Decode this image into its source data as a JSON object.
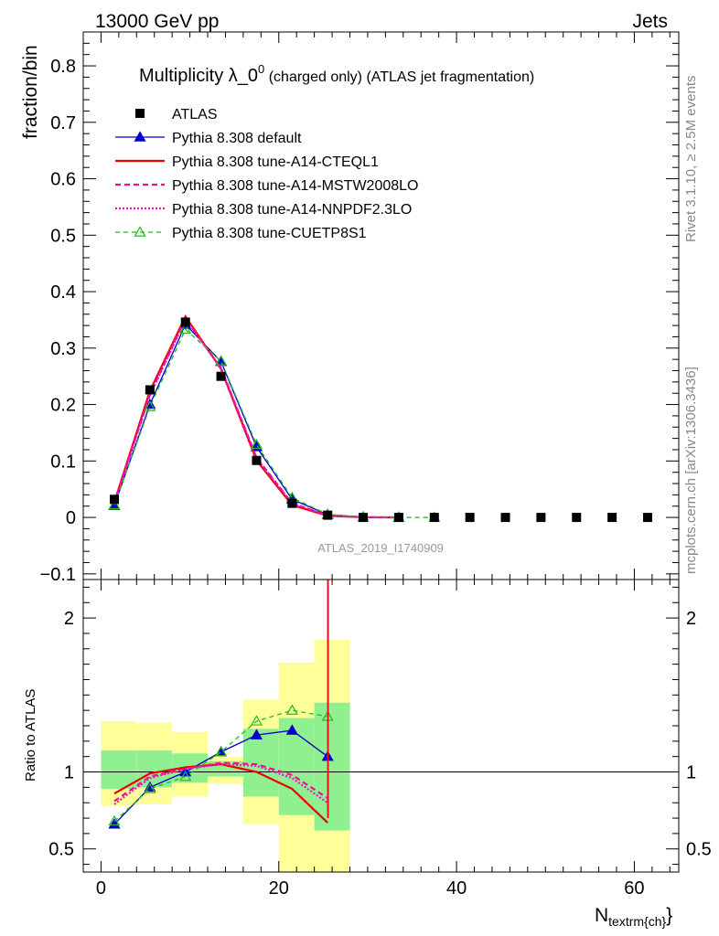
{
  "header": {
    "left": "13000 GeV pp",
    "right": "Jets"
  },
  "side": {
    "rivet": "Rivet 3.1.10, ≥ 2.5M events",
    "mcplots": "mcplots.cern.ch [arXiv:1306.3436]"
  },
  "main": {
    "title_prefix": "Multiplicity λ_0",
    "title_sup": "0",
    "title_suffix": " (charged only) (ATLAS jet fragmentation)",
    "ylabel": "fraction/bin",
    "analysis": "ATLAS_2019_I1740909"
  },
  "ratio": {
    "ylabel": "Ratio to ATLAS"
  },
  "xaxis": {
    "label_main": "N",
    "label_sub": "textrm{ch}",
    "label_close": "}"
  },
  "colors": {
    "data": "#000000",
    "default": "#0000cc",
    "cteql1": "#ee0000",
    "mstw": "#ee1188",
    "nnpdf": "#ee11cc",
    "cuetp8s1": "#22bb22",
    "band_inner": "#90f090",
    "band_outer": "#ffff99"
  },
  "chart_data": {
    "type": "line",
    "x_range": [
      -2,
      65
    ],
    "main_ylim": [
      -0.11,
      0.86
    ],
    "ratio_ylim": [
      0.35,
      2.25
    ],
    "x_ticks": [
      0,
      20,
      40,
      60
    ],
    "main_y_ticks": [
      -0.1,
      0,
      0.1,
      0.2,
      0.3,
      0.4,
      0.5,
      0.6,
      0.7,
      0.8
    ],
    "ratio_y_ticks": [
      0.5,
      1,
      2
    ],
    "legend_position": "top-left",
    "data": {
      "name": "ATLAS",
      "x": [
        1.5,
        5.5,
        9.5,
        13.5,
        17.5,
        21.5,
        25.5,
        29.5,
        33.5,
        37.5,
        41.5,
        45.5,
        49.5,
        53.5,
        57.5,
        61.5
      ],
      "y": [
        0.032,
        0.226,
        0.346,
        0.25,
        0.101,
        0.025,
        0.004,
        0.0,
        0.0,
        0.0,
        0.0,
        0.0,
        0.0,
        0.0,
        0.0,
        0.0
      ]
    },
    "series": [
      {
        "name": "Pythia 8.308 default",
        "key": "default",
        "x": [
          1.5,
          5.5,
          9.5,
          13.5,
          17.5,
          21.5,
          25.5,
          29.5,
          33.5
        ],
        "y": [
          0.021,
          0.2,
          0.342,
          0.276,
          0.125,
          0.032,
          0.005,
          0.0006,
          5e-05
        ],
        "ratio": [
          0.66,
          0.9,
          1.0,
          1.13,
          1.24,
          1.27,
          1.1
        ]
      },
      {
        "name": "Pythia 8.308 tune-A14-CTEQL1",
        "key": "cteql1",
        "x": [
          1.5,
          5.5,
          9.5,
          13.5,
          17.5,
          21.5,
          25.5,
          29.5,
          33.5
        ],
        "y": [
          0.027,
          0.224,
          0.356,
          0.263,
          0.101,
          0.022,
          0.003,
          0.0003,
          2e-05
        ],
        "ratio": [
          0.86,
          0.99,
          1.03,
          1.05,
          1.0,
          0.89,
          0.67
        ]
      },
      {
        "name": "Pythia 8.308 tune-A14-MSTW2008LO",
        "key": "mstw",
        "x": [
          1.5,
          5.5,
          9.5,
          13.5,
          17.5,
          21.5,
          25.5,
          29.5,
          33.5
        ],
        "y": [
          0.026,
          0.218,
          0.352,
          0.264,
          0.106,
          0.025,
          0.0035,
          0.0004,
          3e-05
        ],
        "ratio": [
          0.81,
          0.97,
          1.02,
          1.06,
          1.05,
          0.98,
          0.83
        ]
      },
      {
        "name": "Pythia 8.308 tune-A14-NNPDF2.3LO",
        "key": "nnpdf",
        "x": [
          1.5,
          5.5,
          9.5,
          13.5,
          17.5,
          21.5,
          25.5,
          29.5,
          33.5
        ],
        "y": [
          0.025,
          0.216,
          0.351,
          0.265,
          0.105,
          0.025,
          0.0034,
          0.0004,
          3e-05
        ],
        "ratio": [
          0.79,
          0.96,
          1.02,
          1.05,
          1.04,
          0.96,
          0.8
        ]
      },
      {
        "name": "Pythia 8.308 tune-CUETP8S1",
        "key": "cuetp8s1",
        "x": [
          1.5,
          5.5,
          9.5,
          13.5,
          17.5,
          21.5,
          25.5,
          29.5,
          33.5,
          37.5
        ],
        "y": [
          0.022,
          0.196,
          0.333,
          0.277,
          0.129,
          0.035,
          0.0055,
          0.0007,
          6e-05,
          4e-06
        ],
        "ratio": [
          0.68,
          0.89,
          0.97,
          1.13,
          1.33,
          1.4,
          1.36
        ]
      }
    ],
    "ratio_bands": {
      "edges": [
        0,
        4,
        8,
        12,
        16,
        20,
        24,
        28
      ],
      "inner_lo": [
        0.89,
        0.9,
        0.93,
        0.97,
        0.84,
        0.72,
        0.62
      ],
      "inner_hi": [
        1.14,
        1.14,
        1.12,
        1.07,
        1.28,
        1.35,
        1.45
      ],
      "outer_lo": [
        0.78,
        0.79,
        0.84,
        0.92,
        0.66,
        0.35,
        0.35
      ],
      "outer_hi": [
        1.33,
        1.32,
        1.26,
        1.1,
        1.47,
        1.71,
        1.86
      ]
    }
  }
}
